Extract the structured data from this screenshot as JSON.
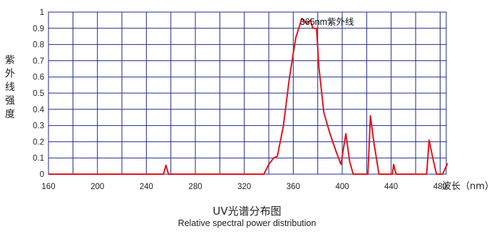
{
  "chart_data": {
    "type": "line",
    "title": "UV光谱分布图",
    "subtitle": "Relative spectral power distribution",
    "ylabel": "紫外线强度",
    "xlabel": "波长（nm）",
    "xlim": [
      160,
      485
    ],
    "ylim": [
      0,
      1
    ],
    "grid": true,
    "line_color": "#e3141b",
    "grid_color": "#1f2a8a",
    "x_ticks": [
      160,
      200,
      240,
      280,
      320,
      360,
      400,
      440,
      480
    ],
    "x_grid": [
      160,
      180,
      200,
      220,
      240,
      260,
      280,
      300,
      320,
      340,
      360,
      380,
      400,
      420,
      440,
      460,
      480
    ],
    "y_ticks": [
      0,
      0.1,
      0.2,
      0.3,
      0.4,
      0.5,
      0.6,
      0.7,
      0.8,
      0.9,
      1
    ],
    "y_tick_labels": [
      "0",
      "0.1",
      "0.2",
      "0.3",
      "0.4",
      "0.5",
      "0.6",
      "0.7",
      "0.8",
      "0.9",
      "1"
    ],
    "annotation": {
      "text": "365nm紫外线",
      "x": 365.5,
      "y": 0.92
    },
    "series": [
      {
        "x": [
          160,
          254,
          256,
          258,
          336,
          340,
          344,
          347,
          352,
          357,
          362,
          367,
          371,
          374,
          376,
          379,
          381,
          385,
          390,
          395,
          399,
          403,
          406,
          409,
          421,
          423,
          426,
          430,
          441,
          442,
          444,
          448,
          469,
          471,
          474,
          477,
          482,
          486,
          490
        ],
        "y": [
          0,
          0,
          0.055,
          0,
          0,
          0.06,
          0.1,
          0.11,
          0.3,
          0.6,
          0.84,
          0.96,
          0.93,
          0.95,
          0.9,
          0.9,
          0.66,
          0.38,
          0.25,
          0.14,
          0.06,
          0.25,
          0.08,
          0,
          0,
          0.36,
          0.19,
          0,
          0,
          0.06,
          0,
          0,
          0,
          0.21,
          0.1,
          0,
          0,
          0.065,
          0
        ]
      }
    ]
  }
}
